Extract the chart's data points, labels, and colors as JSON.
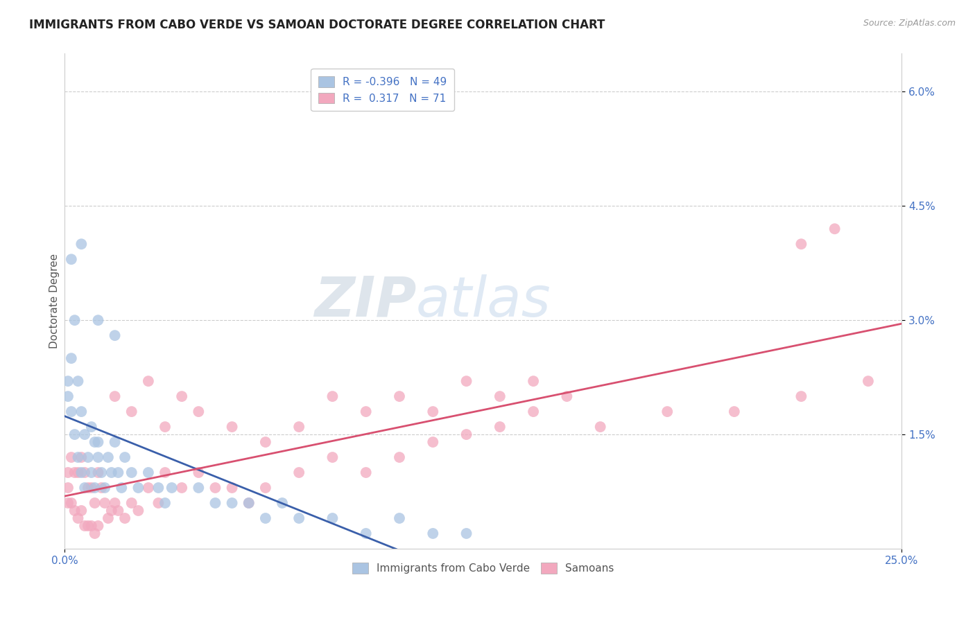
{
  "title": "IMMIGRANTS FROM CABO VERDE VS SAMOAN DOCTORATE DEGREE CORRELATION CHART",
  "source": "Source: ZipAtlas.com",
  "ylabel": "Doctorate Degree",
  "xlim": [
    0.0,
    0.25
  ],
  "ylim": [
    0.0,
    0.065
  ],
  "ytick_vals": [
    0.015,
    0.03,
    0.045,
    0.06
  ],
  "ytick_labels": [
    "1.5%",
    "3.0%",
    "4.5%",
    "6.0%"
  ],
  "color_blue": "#aac4e2",
  "color_pink": "#f2a8be",
  "line_color_blue": "#3a5faa",
  "line_color_pink": "#d85070",
  "marker_size": 130,
  "watermark_zip": "ZIP",
  "watermark_atlas": "atlas",
  "legend_label1": "R = -0.396   N = 49",
  "legend_label2": "R =  0.317   N = 71",
  "legend_label3": "Immigrants from Cabo Verde",
  "legend_label4": "Samoans",
  "cabo_verde_x": [
    0.001,
    0.001,
    0.002,
    0.002,
    0.003,
    0.003,
    0.004,
    0.004,
    0.005,
    0.005,
    0.006,
    0.006,
    0.007,
    0.008,
    0.008,
    0.009,
    0.009,
    0.01,
    0.01,
    0.011,
    0.012,
    0.013,
    0.014,
    0.015,
    0.016,
    0.017,
    0.018,
    0.02,
    0.022,
    0.025,
    0.028,
    0.03,
    0.032,
    0.04,
    0.045,
    0.05,
    0.055,
    0.06,
    0.065,
    0.07,
    0.08,
    0.09,
    0.1,
    0.11,
    0.12,
    0.002,
    0.01,
    0.015,
    0.005
  ],
  "cabo_verde_y": [
    0.022,
    0.02,
    0.025,
    0.018,
    0.03,
    0.015,
    0.022,
    0.012,
    0.018,
    0.01,
    0.015,
    0.008,
    0.012,
    0.016,
    0.01,
    0.014,
    0.008,
    0.014,
    0.012,
    0.01,
    0.008,
    0.012,
    0.01,
    0.014,
    0.01,
    0.008,
    0.012,
    0.01,
    0.008,
    0.01,
    0.008,
    0.006,
    0.008,
    0.008,
    0.006,
    0.006,
    0.006,
    0.004,
    0.006,
    0.004,
    0.004,
    0.002,
    0.004,
    0.002,
    0.002,
    0.038,
    0.03,
    0.028,
    0.04
  ],
  "samoan_x": [
    0.001,
    0.001,
    0.001,
    0.002,
    0.002,
    0.003,
    0.003,
    0.004,
    0.004,
    0.005,
    0.005,
    0.006,
    0.006,
    0.007,
    0.007,
    0.008,
    0.008,
    0.009,
    0.009,
    0.01,
    0.01,
    0.011,
    0.012,
    0.013,
    0.014,
    0.015,
    0.016,
    0.018,
    0.02,
    0.022,
    0.025,
    0.028,
    0.03,
    0.035,
    0.04,
    0.045,
    0.05,
    0.055,
    0.06,
    0.07,
    0.08,
    0.09,
    0.1,
    0.11,
    0.12,
    0.13,
    0.14,
    0.15,
    0.16,
    0.18,
    0.2,
    0.22,
    0.24,
    0.015,
    0.02,
    0.025,
    0.03,
    0.035,
    0.04,
    0.05,
    0.06,
    0.07,
    0.08,
    0.09,
    0.1,
    0.11,
    0.12,
    0.13,
    0.14,
    0.22,
    0.23
  ],
  "samoan_y": [
    0.01,
    0.008,
    0.006,
    0.012,
    0.006,
    0.01,
    0.005,
    0.01,
    0.004,
    0.012,
    0.005,
    0.01,
    0.003,
    0.008,
    0.003,
    0.008,
    0.003,
    0.006,
    0.002,
    0.01,
    0.003,
    0.008,
    0.006,
    0.004,
    0.005,
    0.006,
    0.005,
    0.004,
    0.006,
    0.005,
    0.008,
    0.006,
    0.01,
    0.008,
    0.01,
    0.008,
    0.008,
    0.006,
    0.008,
    0.01,
    0.012,
    0.01,
    0.012,
    0.014,
    0.015,
    0.016,
    0.018,
    0.02,
    0.016,
    0.018,
    0.018,
    0.02,
    0.022,
    0.02,
    0.018,
    0.022,
    0.016,
    0.02,
    0.018,
    0.016,
    0.014,
    0.016,
    0.02,
    0.018,
    0.02,
    0.018,
    0.022,
    0.02,
    0.022,
    0.04,
    0.042
  ]
}
